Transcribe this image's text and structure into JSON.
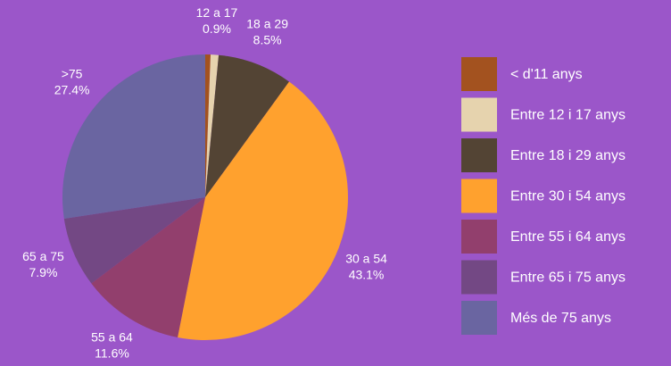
{
  "chart_data": {
    "type": "pie",
    "categories": [
      "< d'11 anys",
      "Entre 12 i 17 anys",
      "Entre 18 i 29 anys",
      "Entre 30 i 54 anys",
      "Entre 55 i 64 anys",
      "Entre 65 i 75 anys",
      "Més de 75 anys"
    ],
    "slice_labels": [
      null,
      "12 a 17",
      "18 a 29",
      "30 a 54",
      "55 a 64",
      "65 a 75",
      ">75"
    ],
    "values": [
      0.6,
      0.9,
      8.5,
      43.1,
      11.6,
      7.9,
      27.4
    ],
    "value_labels": [
      null,
      "0.9%",
      "8.5%",
      "43.1%",
      "11.6%",
      "7.9%",
      "27.4%"
    ],
    "colors": [
      "#a3521f",
      "#e6d3ae",
      "#534434",
      "#ffa12e",
      "#923f6d",
      "#734884",
      "#6a65a1"
    ],
    "legend": "right"
  }
}
